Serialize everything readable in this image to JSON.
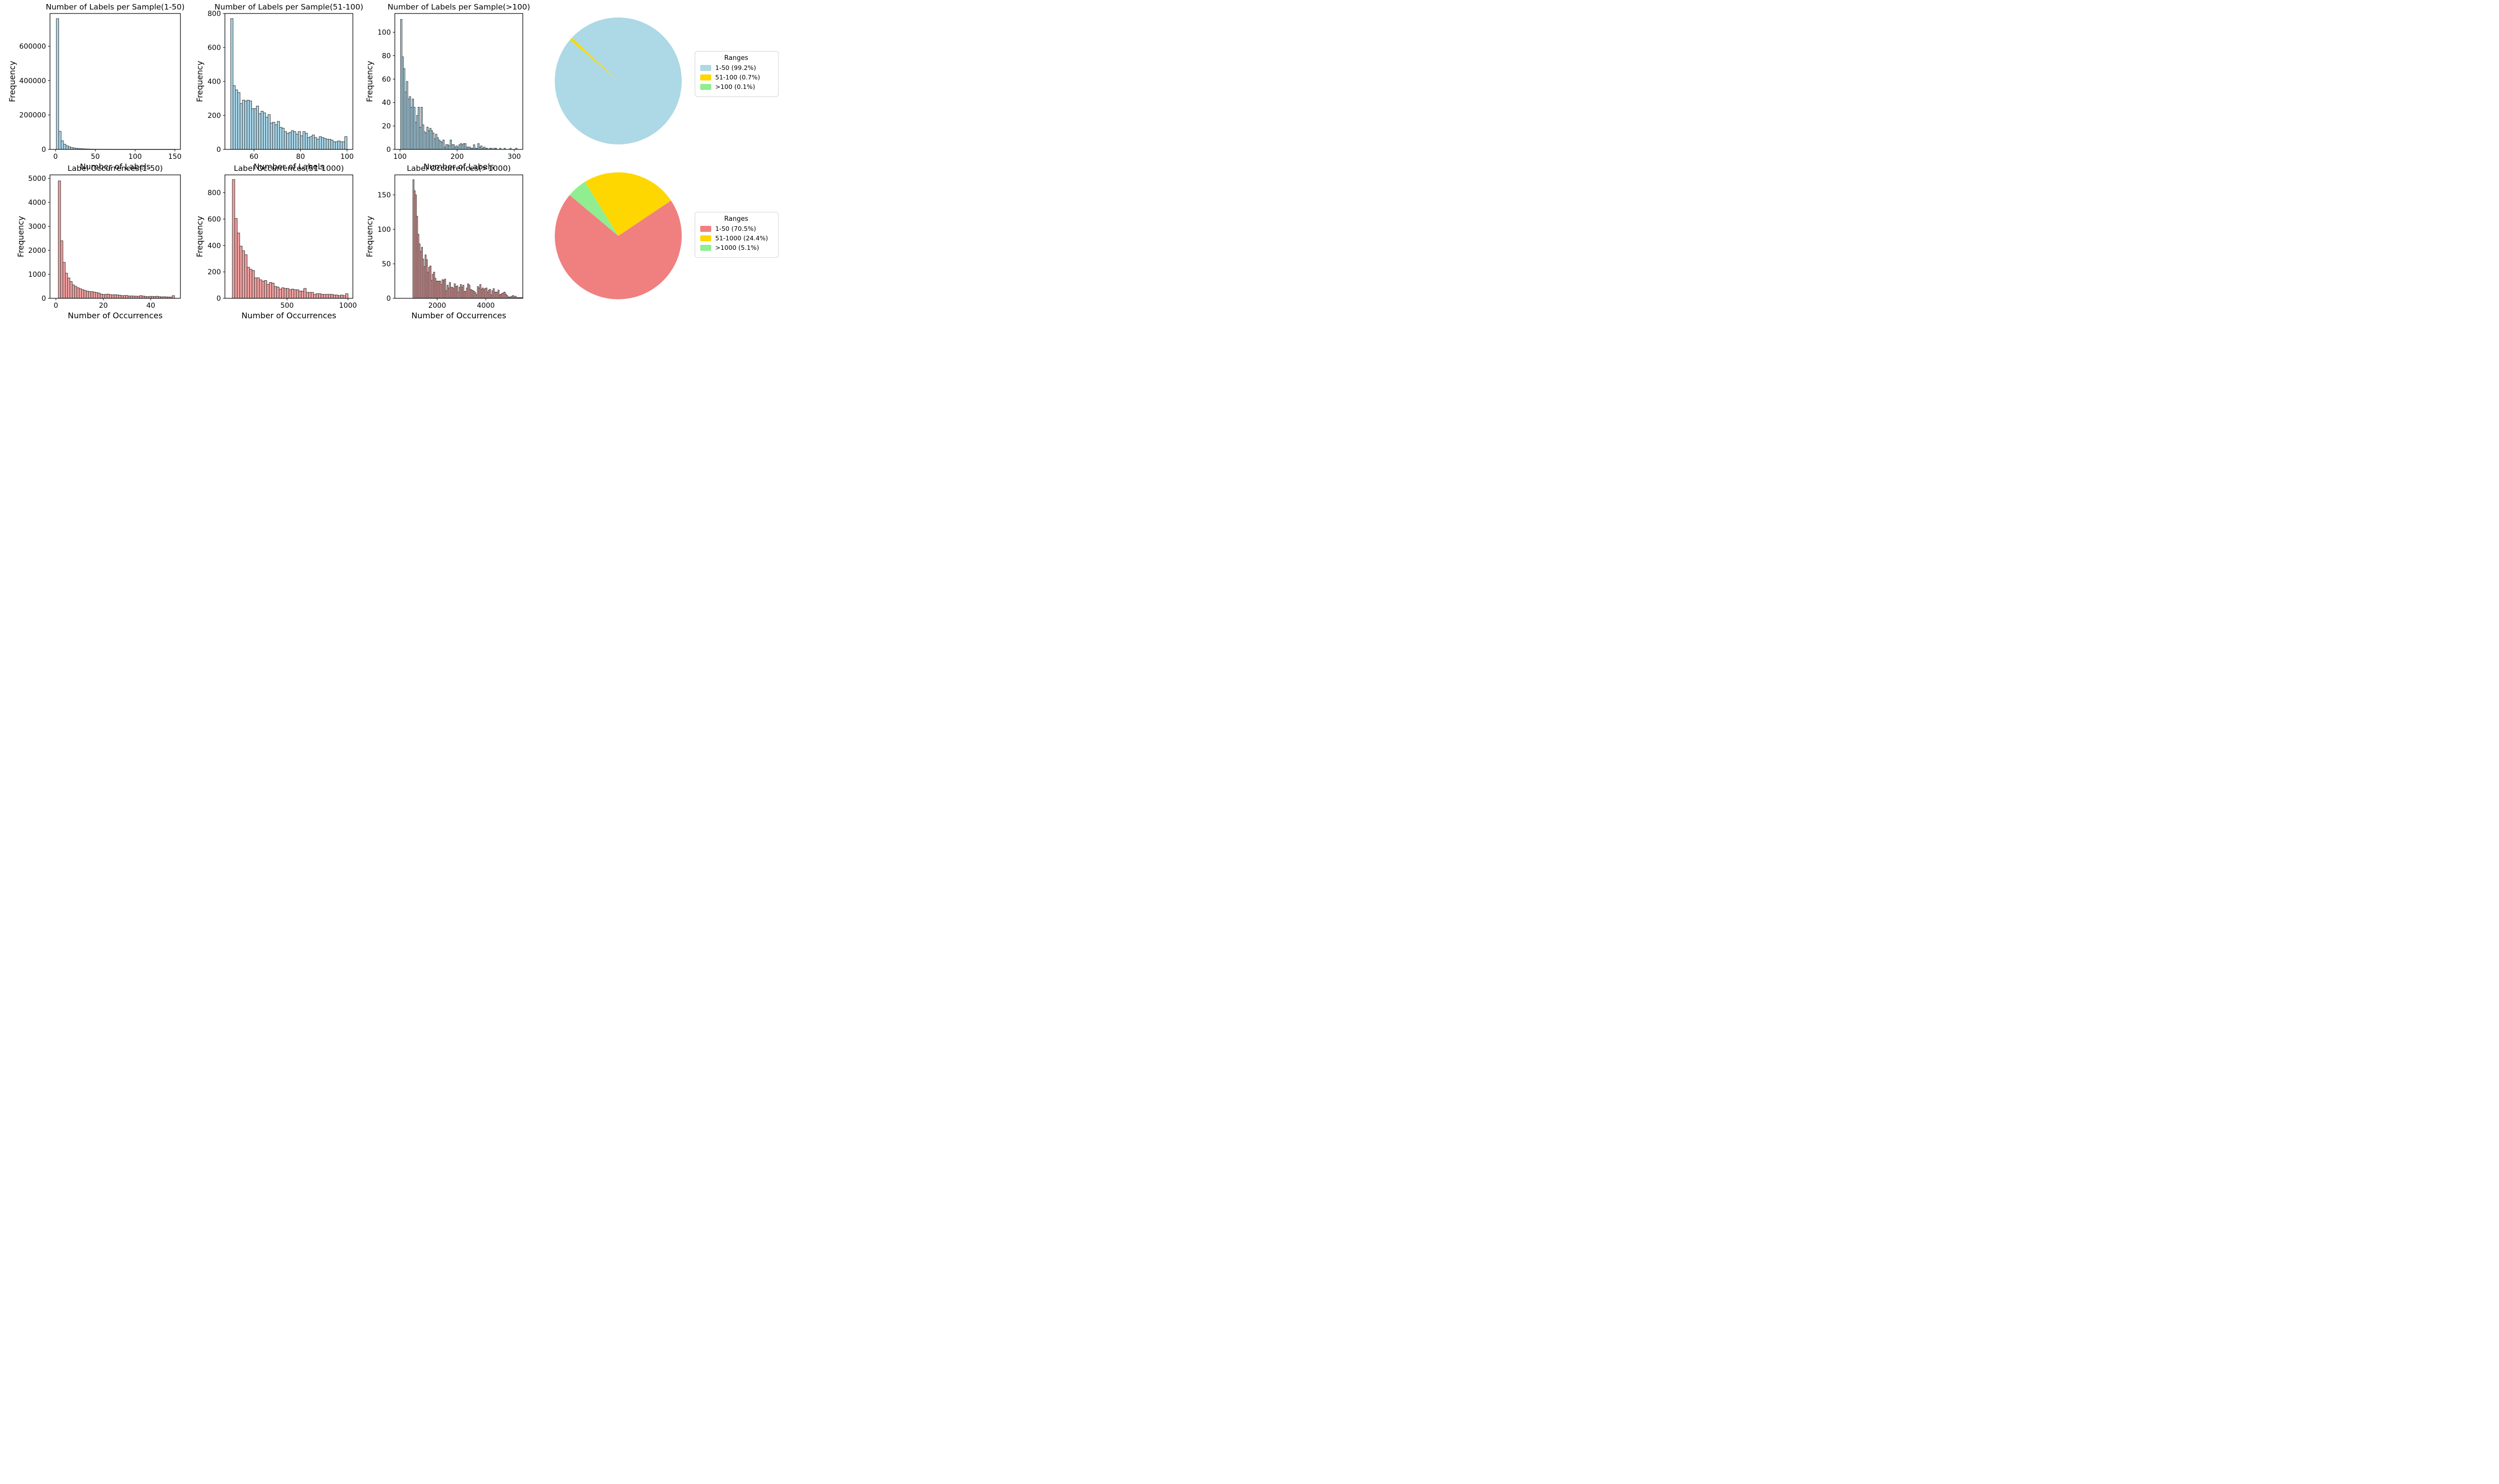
{
  "figure": {
    "background": "#ffffff",
    "edge_color": "#3a3a3a",
    "hist_blue": "#a9d7ea",
    "hist_pink": "#f2a0a0"
  },
  "chart_data": [
    {
      "type": "histogram",
      "title": "Number of Labels per Sample(1-50)",
      "xlabel": "Number of Labels",
      "ylabel": "Frequency",
      "bar_color": "#a9d7ea",
      "edge_color": "#3a3a3a",
      "bin_start": 1,
      "bin_width": 3,
      "xlim": [
        -7,
        157
      ],
      "ylim": [
        0,
        790000
      ],
      "xticks": [
        0,
        50,
        100,
        150
      ],
      "yticks": [
        0,
        200000,
        400000,
        600000
      ],
      "grid": false,
      "values": [
        760000,
        105000,
        50000,
        30000,
        21000,
        15000,
        11000,
        8500,
        6500,
        5000,
        4000,
        3200,
        2600,
        2100,
        1700,
        1400,
        1150,
        950,
        800,
        680,
        580,
        500,
        430,
        370,
        320,
        280,
        250,
        220,
        200,
        180,
        160,
        150,
        140,
        130,
        120,
        110,
        100,
        95,
        90,
        85,
        80,
        75,
        70,
        65,
        60,
        55,
        50,
        45,
        40,
        35
      ]
    },
    {
      "type": "histogram",
      "title": "Number of Labels per Sample(51-100)",
      "xlabel": "Number of Labels",
      "ylabel": "Frequency",
      "bar_color": "#a9d7ea",
      "edge_color": "#3a3a3a",
      "bin_start": 50,
      "bin_width": 1,
      "xlim": [
        47.5,
        102.5
      ],
      "ylim": [
        0,
        800
      ],
      "xticks": [
        60,
        80,
        100
      ],
      "yticks": [
        0,
        200,
        400,
        600,
        800
      ],
      "grid": false,
      "values": [
        770,
        375,
        350,
        335,
        270,
        290,
        285,
        290,
        285,
        240,
        240,
        255,
        210,
        225,
        215,
        190,
        205,
        155,
        160,
        145,
        165,
        130,
        125,
        105,
        95,
        100,
        110,
        105,
        90,
        105,
        80,
        105,
        95,
        70,
        75,
        85,
        70,
        60,
        75,
        70,
        65,
        60,
        60,
        55,
        45,
        45,
        50,
        45,
        45,
        75
      ]
    },
    {
      "type": "histogram",
      "title": "Number of Labels per Sample(>100)",
      "xlabel": "Number of Labels",
      "ylabel": "Frequency",
      "bar_color": "#a9d7ea",
      "edge_color": "#3a3a3a",
      "bin_start": 101,
      "bin_width": 2.55,
      "xlim": [
        91,
        315
      ],
      "ylim": [
        0,
        116
      ],
      "xticks": [
        100,
        200,
        300
      ],
      "yticks": [
        0,
        20,
        40,
        60,
        80,
        100
      ],
      "grid": false,
      "values": [
        111,
        79,
        69,
        49,
        58,
        43,
        45,
        36,
        43,
        36,
        23,
        29,
        36,
        19,
        36,
        21,
        15,
        14,
        19,
        16,
        18,
        16,
        14,
        9,
        13,
        10,
        8,
        7,
        6,
        8,
        2,
        4,
        4,
        3,
        8,
        4,
        4,
        2,
        3,
        2,
        4,
        5,
        4,
        5,
        5,
        2,
        2,
        2,
        1,
        1,
        4,
        1,
        1,
        5,
        2,
        3,
        1,
        2,
        1,
        1,
        0,
        1,
        1,
        0,
        1,
        1,
        0,
        0,
        1,
        0,
        0,
        1,
        0,
        0,
        0,
        1,
        0,
        0,
        0,
        1
      ]
    },
    {
      "type": "histogram",
      "title": "Label Occurrences(1-50)",
      "xlabel": "Number of Occurrences",
      "ylabel": "Frequency",
      "bar_color": "#f2a0a0",
      "edge_color": "#3a3a3a",
      "bin_start": 1,
      "bin_width": 0.98,
      "xlim": [
        -2.5,
        52.5
      ],
      "ylim": [
        0,
        5150
      ],
      "xticks": [
        0,
        20,
        40
      ],
      "yticks": [
        0,
        1000,
        2000,
        3000,
        4000,
        5000
      ],
      "grid": false,
      "values": [
        4900,
        2400,
        1500,
        1050,
        850,
        700,
        560,
        500,
        440,
        400,
        360,
        330,
        300,
        280,
        280,
        260,
        240,
        220,
        175,
        160,
        165,
        175,
        150,
        145,
        150,
        140,
        130,
        110,
        115,
        120,
        95,
        100,
        95,
        90,
        85,
        110,
        95,
        80,
        70,
        80,
        80,
        75,
        85,
        70,
        60,
        65,
        60,
        55,
        50,
        110
      ]
    },
    {
      "type": "histogram",
      "title": "Label Occurrences(51-1000)",
      "xlabel": "Number of Occurrences",
      "ylabel": "Frequency",
      "bar_color": "#f2a0a0",
      "edge_color": "#3a3a3a",
      "bin_start": 51,
      "bin_width": 20.2,
      "xlim": [
        -10,
        1040
      ],
      "ylim": [
        0,
        935
      ],
      "xticks": [
        500,
        1000
      ],
      "yticks": [
        0,
        200,
        400,
        600,
        800
      ],
      "grid": false,
      "values": [
        900,
        605,
        495,
        395,
        360,
        330,
        235,
        220,
        210,
        155,
        155,
        140,
        130,
        135,
        105,
        120,
        115,
        90,
        85,
        70,
        80,
        75,
        75,
        65,
        70,
        65,
        65,
        55,
        55,
        75,
        45,
        45,
        45,
        30,
        35,
        35,
        30,
        30,
        30,
        30,
        30,
        25,
        25,
        20,
        25,
        20,
        35
      ]
    },
    {
      "type": "histogram",
      "title": "Label Occurrences(>1000)",
      "xlabel": "Number of Occurrences",
      "ylabel": "Frequency",
      "bar_color": "#f2a0a0",
      "edge_color": "#3a3a3a",
      "bin_start": 1000,
      "bin_width": 50,
      "xlim": [
        260,
        5520
      ],
      "ylim": [
        0,
        179
      ],
      "xticks": [
        2000,
        4000
      ],
      "yticks": [
        0,
        50,
        100,
        150
      ],
      "grid": false,
      "values": [
        172,
        156,
        150,
        119,
        93,
        79,
        68,
        74,
        57,
        46,
        63,
        56,
        38,
        45,
        47,
        26,
        35,
        38,
        29,
        25,
        25,
        25,
        25,
        20,
        27,
        26,
        28,
        11,
        19,
        15,
        23,
        16,
        16,
        14,
        21,
        17,
        18,
        9,
        16,
        20,
        16,
        19,
        10,
        10,
        15,
        21,
        19,
        13,
        12,
        11,
        10,
        8,
        5,
        17,
        15,
        20,
        13,
        15,
        13,
        14,
        15,
        9,
        12,
        13,
        5,
        11,
        14,
        9,
        9,
        9,
        12,
        5,
        6,
        7,
        8,
        9,
        6,
        4,
        2,
        2,
        2,
        3,
        4,
        2,
        3,
        1,
        1,
        1,
        1,
        1
      ]
    },
    {
      "type": "pie",
      "name": "labels-per-sample-pie",
      "values": [
        99.2,
        0.7,
        0.1
      ],
      "labels": [
        "1-50 (99.2%)",
        "51-100 (0.7%)",
        ">100 (0.1%)"
      ],
      "colors": [
        "#ADD8E6",
        "#FFD700",
        "#90EE90"
      ],
      "startangle": 140,
      "legend": {
        "title": "Ranges"
      }
    },
    {
      "type": "pie",
      "name": "label-occurrences-pie",
      "values": [
        70.5,
        24.4,
        5.1
      ],
      "labels": [
        "1-50 (70.5%)",
        "51-1000 (24.4%)",
        ">1000 (5.1%)"
      ],
      "colors": [
        "#F08080",
        "#FFD700",
        "#90EE90"
      ],
      "startangle": 140,
      "legend": {
        "title": "Ranges"
      }
    }
  ]
}
